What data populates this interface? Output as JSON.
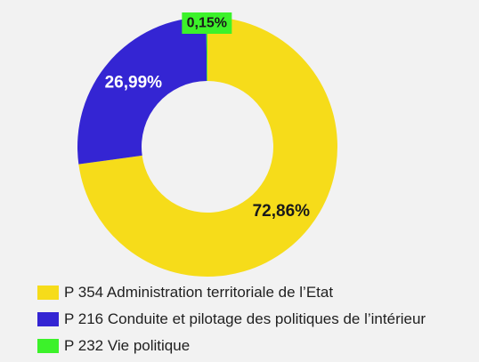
{
  "chart_data": {
    "type": "pie",
    "donut": true,
    "title": "",
    "series": [
      {
        "name": "P 354 Administration territoriale de l’Etat",
        "value": 72.86,
        "label": "72,86%",
        "color": "#f6dc1a",
        "label_color": "#1a1a1a"
      },
      {
        "name": "P 216 Conduite et pilotage des politiques de l’intérieur",
        "value": 26.99,
        "label": "26,99%",
        "color": "#3425d3",
        "label_color": "#ffffff"
      },
      {
        "name": "P 232 Vie politique",
        "value": 0.15,
        "label": "0,15%",
        "color": "#3cf22a",
        "label_color": "#1a1a1a"
      }
    ],
    "legend_position": "bottom-left"
  },
  "background": "#f2f2f2"
}
